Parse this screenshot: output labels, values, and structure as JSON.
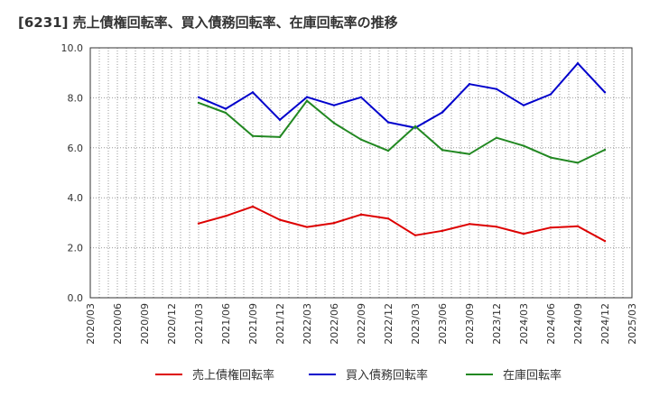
{
  "chart_data": {
    "type": "line",
    "title": "[6231]  売上債権回転率、買入債務回転率、在庫回転率の推移",
    "xlabel": "",
    "ylabel": "",
    "ylim": [
      0,
      10
    ],
    "yticks": [
      "0.0",
      "2.0",
      "4.0",
      "6.0",
      "8.0",
      "10.0"
    ],
    "ytick_values": [
      0,
      2,
      4,
      6,
      8,
      10
    ],
    "x_ticks": [
      "2020/03",
      "2020/06",
      "2020/09",
      "2020/12",
      "2021/03",
      "2021/06",
      "2021/09",
      "2021/12",
      "2022/03",
      "2022/06",
      "2022/09",
      "2022/12",
      "2023/03",
      "2023/06",
      "2023/09",
      "2023/12",
      "2024/03",
      "2024/06",
      "2024/09",
      "2024/12",
      "2025/03"
    ],
    "x": [
      "2021/03",
      "2021/06",
      "2021/09",
      "2021/12",
      "2022/03",
      "2022/06",
      "2022/09",
      "2022/12",
      "2023/03",
      "2023/06",
      "2023/09",
      "2023/12",
      "2024/03",
      "2024/06",
      "2024/09",
      "2024/12"
    ],
    "grid": true,
    "legend_position": "bottom",
    "series": [
      {
        "name": "売上債権回転率",
        "color": "#dd0000",
        "values": [
          2.97,
          3.27,
          3.65,
          3.12,
          2.83,
          2.99,
          3.33,
          3.17,
          2.5,
          2.68,
          2.95,
          2.84,
          2.56,
          2.81,
          2.86,
          2.27
        ]
      },
      {
        "name": "買入債務回転率",
        "color": "#0000cc",
        "values": [
          8.02,
          7.56,
          8.22,
          7.12,
          8.03,
          7.7,
          8.02,
          7.02,
          6.8,
          7.42,
          8.55,
          8.35,
          7.7,
          8.14,
          9.38,
          8.22
        ]
      },
      {
        "name": "在庫回転率",
        "color": "#228822",
        "values": [
          7.8,
          7.4,
          6.47,
          6.43,
          7.88,
          6.99,
          6.33,
          5.88,
          6.86,
          5.91,
          5.75,
          6.4,
          6.08,
          5.61,
          5.4,
          5.92
        ]
      }
    ]
  }
}
